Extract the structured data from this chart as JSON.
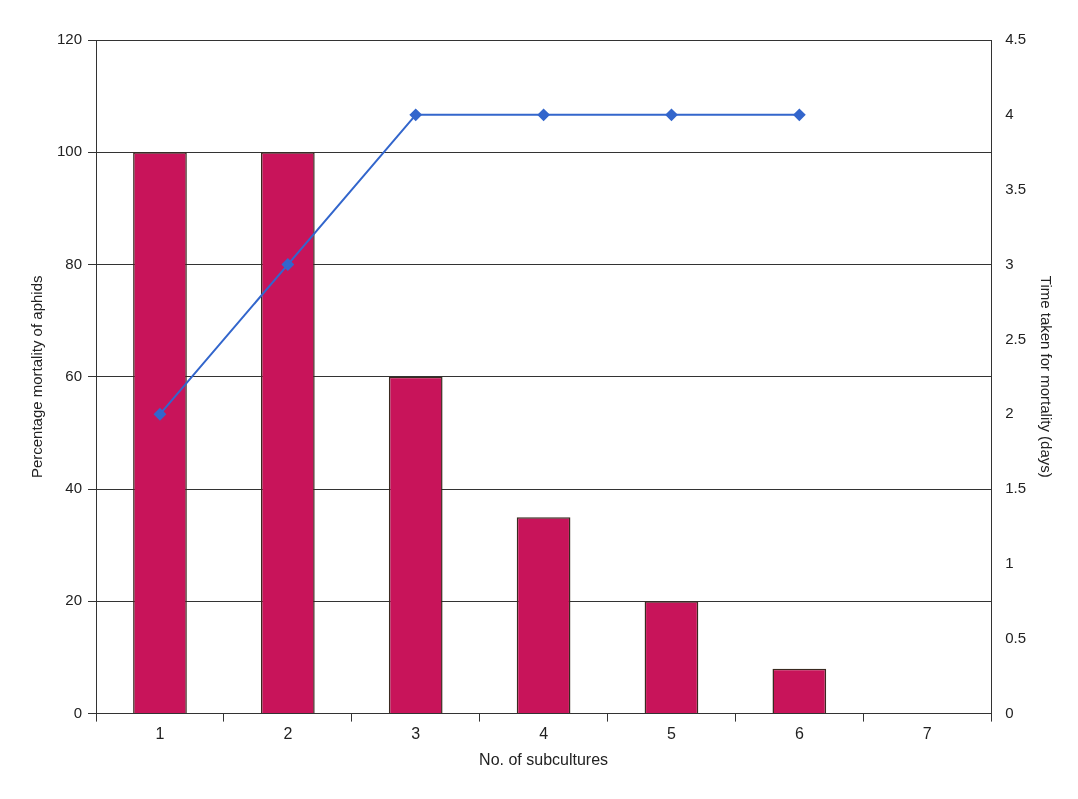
{
  "chart_data": {
    "type": "bar",
    "xlabel": "No. of subcultures",
    "ylabel": "Percentage mortality of aphids",
    "y2label": "Time taken for mortality (days)",
    "categories": [
      "1",
      "2",
      "3",
      "4",
      "5",
      "6",
      "7"
    ],
    "series": [
      {
        "color": "#c8145a",
        "values": [
          100,
          100,
          60,
          35,
          20,
          8,
          null
        ]
      },
      {
        "type": "line",
        "axis": "y2",
        "color": "#3366cc",
        "values": [
          2,
          3,
          4,
          4,
          4,
          4,
          null
        ],
        "marker": "diamond",
        "line_style": "solid"
      }
    ],
    "ylim": [
      0,
      120
    ],
    "yticks": [
      0,
      20,
      40,
      60,
      80,
      100,
      120
    ],
    "y2lim": [
      0,
      4.5
    ],
    "y2ticks": [
      0,
      0.5,
      1,
      1.5,
      2,
      2.5,
      3,
      3.5,
      4,
      4.5
    ],
    "grid": "y",
    "legend": false
  }
}
